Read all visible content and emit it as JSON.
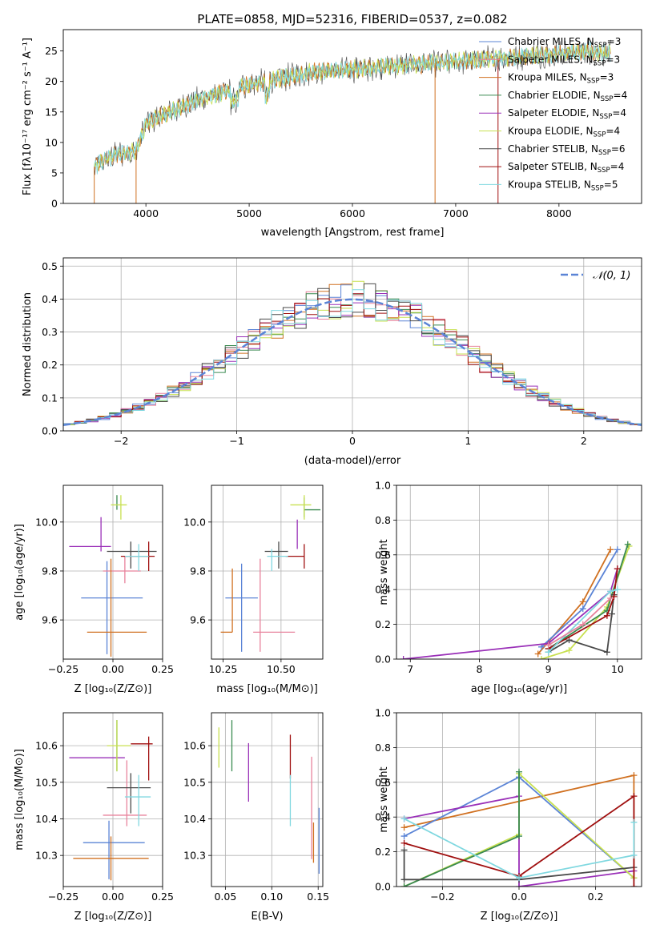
{
  "colors": {
    "chabrier_miles": "#5b84d6",
    "salpeter_miles": "#e8829c",
    "kroupa_miles": "#d07020",
    "chabrier_elodie": "#3a8a50",
    "salpeter_elodie": "#9a30b8",
    "kroupa_elodie": "#c8e050",
    "chabrier_stelib": "#4a4a4a",
    "salpeter_stelib": "#a01010",
    "kroupa_stelib": "#80d8e0",
    "gauss": "#5b84d6",
    "grid": "#b0b0b0"
  },
  "chart_data": [
    {
      "id": "spectrum",
      "type": "line",
      "title": "PLATE=0858, MJD=52316, FIBERID=0537, z=0.082",
      "xlabel": "wavelength [Angstrom, rest frame]",
      "ylabel": "Flux [fλ10⁻¹⁷ erg cm⁻² s⁻¹ A⁻¹]",
      "xlim": [
        3200,
        8800
      ],
      "ylim": [
        0,
        28.5
      ],
      "xticks": [
        4000,
        5000,
        6000,
        7000,
        8000
      ],
      "yticks": [
        0,
        5,
        10,
        15,
        20,
        25
      ],
      "grid": false,
      "legend_position": "right",
      "x_range_data": [
        3500,
        8500
      ],
      "continuum": {
        "x": [
          3500,
          3700,
          3900,
          4000,
          4100,
          4300,
          4500,
          4800,
          5000,
          5300,
          5600,
          6000,
          6400,
          6800,
          7200,
          7600,
          8000,
          8300,
          8500
        ],
        "y": [
          6,
          8,
          8.5,
          13,
          14,
          15.5,
          17,
          18.5,
          19.5,
          20.5,
          21.5,
          22,
          22.5,
          23,
          23.5,
          24,
          24.5,
          25,
          24.5
        ]
      },
      "legend": [
        {
          "label": "Chabrier MILES, N",
          "sub": "SSP",
          "tail": "=3",
          "color_key": "chabrier_miles"
        },
        {
          "label": "Salpeter MILES, N",
          "sub": "SSP",
          "tail": "=3",
          "color_key": "salpeter_miles"
        },
        {
          "label": "Kroupa MILES, N",
          "sub": "SSP",
          "tail": "=3",
          "color_key": "kroupa_miles"
        },
        {
          "label": "Chabrier ELODIE, N",
          "sub": "SSP",
          "tail": "=4",
          "color_key": "chabrier_elodie"
        },
        {
          "label": "Salpeter ELODIE, N",
          "sub": "SSP",
          "tail": "=4",
          "color_key": "salpeter_elodie"
        },
        {
          "label": "Kroupa ELODIE, N",
          "sub": "SSP",
          "tail": "=4",
          "color_key": "kroupa_elodie"
        },
        {
          "label": "Chabrier STELIB, N",
          "sub": "SSP",
          "tail": "=6",
          "color_key": "chabrier_stelib"
        },
        {
          "label": "Salpeter STELIB, N",
          "sub": "SSP",
          "tail": "=4",
          "color_key": "salpeter_stelib"
        },
        {
          "label": "Kroupa STELIB, N",
          "sub": "SSP",
          "tail": "=5",
          "color_key": "kroupa_stelib"
        }
      ],
      "drop_lines": [
        {
          "x": 3500,
          "color_key": "kroupa_miles"
        },
        {
          "x": 3905,
          "color_key": "kroupa_miles"
        },
        {
          "x": 6800,
          "color_key": "kroupa_miles"
        },
        {
          "x": 7410,
          "color_key": "salpeter_stelib"
        }
      ]
    },
    {
      "id": "residuals",
      "type": "step",
      "xlabel": "(data-model)/error",
      "ylabel": "Normed distribution",
      "xlim": [
        -2.5,
        2.5
      ],
      "ylim": [
        0,
        0.525
      ],
      "xticks": [
        -2,
        -1,
        0,
        1,
        2
      ],
      "yticks": [
        0.0,
        0.1,
        0.2,
        0.3,
        0.4,
        0.5
      ],
      "grid": true,
      "legend_position": "top-right",
      "gauss_label": "𝒩(0, 1)",
      "bin_width": 0.1
    },
    {
      "id": "age_vs_Z",
      "type": "errorbar",
      "xlabel": "Z [log₁₀(Z/Z⊙)]",
      "ylabel": "age  [log₁₀(age/yr)]",
      "xlim": [
        -0.25,
        0.25
      ],
      "ylim": [
        9.44,
        10.15
      ],
      "xticks": [
        -0.25,
        0.0,
        0.25
      ],
      "xticklabels": [
        "−0.25",
        "0.00",
        "0.25"
      ],
      "yticks": [
        9.6,
        9.8,
        10.0
      ],
      "points": [
        {
          "color_key": "chabrier_miles",
          "x": -0.03,
          "xerr": [
            0.13,
            0.18
          ],
          "y": 9.69,
          "yerr": [
            0.23,
            0.15
          ]
        },
        {
          "color_key": "salpeter_miles",
          "x": 0.06,
          "xerr": [
            0.11,
            0.08
          ],
          "y": 9.8,
          "yerr": [
            0.05,
            0.06
          ]
        },
        {
          "color_key": "kroupa_miles",
          "x": -0.01,
          "xerr": [
            0.12,
            0.18
          ],
          "y": 9.55,
          "yerr": [
            0.1,
            0.3
          ]
        },
        {
          "color_key": "chabrier_elodie",
          "x": 0.02,
          "xerr": [
            0.0,
            0.0
          ],
          "y": 10.07,
          "yerr": [
            0.02,
            0.04
          ]
        },
        {
          "color_key": "salpeter_elodie",
          "x": -0.06,
          "xerr": [
            0.16,
            0.05
          ],
          "y": 9.9,
          "yerr": [
            0.02,
            0.12
          ]
        },
        {
          "color_key": "kroupa_elodie",
          "x": 0.04,
          "xerr": [
            0.05,
            0.03
          ],
          "y": 10.07,
          "yerr": [
            0.06,
            0.04
          ]
        },
        {
          "color_key": "chabrier_stelib",
          "x": 0.09,
          "xerr": [
            0.12,
            0.13
          ],
          "y": 9.88,
          "yerr": [
            0.07,
            0.04
          ]
        },
        {
          "color_key": "salpeter_stelib",
          "x": 0.18,
          "xerr": [
            0.14,
            0.03
          ],
          "y": 9.86,
          "yerr": [
            0.06,
            0.06
          ]
        },
        {
          "color_key": "kroupa_stelib",
          "x": 0.13,
          "xerr": [
            0.07,
            0.05
          ],
          "y": 9.86,
          "yerr": [
            0.06,
            0.05
          ]
        }
      ]
    },
    {
      "id": "age_vs_mass",
      "type": "errorbar",
      "xlabel": "mass [log₁₀(M/M⊙)]",
      "ylabel": "",
      "xlim": [
        10.2,
        10.68
      ],
      "ylim": [
        9.44,
        10.15
      ],
      "xticks": [
        10.25,
        10.5
      ],
      "xticklabels": [
        "10.25",
        "10.50"
      ],
      "yticks": [
        9.6,
        9.8,
        10.0
      ],
      "points": [
        {
          "color_key": "chabrier_miles",
          "x": 10.33,
          "xerr": [
            0.07,
            0.07
          ],
          "y": 9.69,
          "yerr": [
            0.22,
            0.14
          ]
        },
        {
          "color_key": "salpeter_miles",
          "x": 10.41,
          "xerr": [
            0.03,
            0.15
          ],
          "y": 9.55,
          "yerr": [
            0.08,
            0.3
          ]
        },
        {
          "color_key": "kroupa_miles",
          "x": 10.29,
          "xerr": [
            0.05,
            0.0
          ],
          "y": 9.55,
          "yerr": [
            0.0,
            0.26
          ]
        },
        {
          "color_key": "chabrier_elodie",
          "x": 10.6,
          "xerr": [
            0.0,
            0.07
          ],
          "y": 10.05,
          "yerr": [
            0.03,
            0.05
          ]
        },
        {
          "color_key": "salpeter_elodie",
          "x": 10.57,
          "xerr": [
            0.0,
            0.0
          ],
          "y": 9.9,
          "yerr": [
            0.01,
            0.11
          ]
        },
        {
          "color_key": "kroupa_elodie",
          "x": 10.6,
          "xerr": [
            0.06,
            0.03
          ],
          "y": 10.07,
          "yerr": [
            0.06,
            0.04
          ]
        },
        {
          "color_key": "chabrier_stelib",
          "x": 10.49,
          "xerr": [
            0.06,
            0.04
          ],
          "y": 9.88,
          "yerr": [
            0.07,
            0.04
          ]
        },
        {
          "color_key": "salpeter_stelib",
          "x": 10.6,
          "xerr": [
            0.08,
            0.0
          ],
          "y": 9.86,
          "yerr": [
            0.05,
            0.05
          ]
        },
        {
          "color_key": "kroupa_stelib",
          "x": 10.46,
          "xerr": [
            0.02,
            0.07
          ],
          "y": 9.86,
          "yerr": [
            0.06,
            0.03
          ]
        }
      ]
    },
    {
      "id": "weights_vs_age",
      "type": "line",
      "xlabel": "age  [log₁₀(age/yr)]",
      "ylabel": "mass weight",
      "xlim": [
        6.8,
        10.35
      ],
      "ylim": [
        0,
        1.0
      ],
      "xticks": [
        7,
        8,
        9,
        10
      ],
      "yticks": [
        0.0,
        0.2,
        0.4,
        0.6,
        0.8,
        1.0
      ],
      "grid": true,
      "series": [
        {
          "color_key": "kroupa_miles",
          "x": [
            8.85,
            9.5,
            9.9
          ],
          "y": [
            0.03,
            0.33,
            0.63
          ]
        },
        {
          "color_key": "chabrier_miles",
          "x": [
            8.9,
            9.5,
            10.0
          ],
          "y": [
            0.07,
            0.29,
            0.63
          ]
        },
        {
          "color_key": "salpeter_elodie",
          "x": [
            6.9,
            9.0,
            9.9,
            10.0
          ],
          "y": [
            0.0,
            0.09,
            0.39,
            0.52
          ]
        },
        {
          "color_key": "kroupa_elodie",
          "x": [
            8.9,
            9.3,
            9.85,
            10.17
          ],
          "y": [
            0.0,
            0.05,
            0.3,
            0.65
          ]
        },
        {
          "color_key": "chabrier_elodie",
          "x": [
            9.0,
            9.85,
            10.15
          ],
          "y": [
            0.06,
            0.28,
            0.66
          ]
        },
        {
          "color_key": "chabrier_stelib",
          "x": [
            9.0,
            9.3,
            9.85,
            9.92,
            9.95
          ],
          "y": [
            0.04,
            0.11,
            0.04,
            0.26,
            0.37
          ]
        },
        {
          "color_key": "salpeter_stelib",
          "x": [
            9.0,
            9.85,
            9.95,
            10.0
          ],
          "y": [
            0.06,
            0.25,
            0.36,
            0.52
          ]
        },
        {
          "color_key": "kroupa_stelib",
          "x": [
            9.0,
            9.9,
            10.0
          ],
          "y": [
            0.04,
            0.39,
            0.4
          ]
        },
        {
          "color_key": "salpeter_miles",
          "x": [
            9.0,
            9.5,
            9.9
          ],
          "y": [
            0.08,
            0.2,
            0.35
          ]
        }
      ]
    },
    {
      "id": "mass_vs_Z",
      "type": "errorbar",
      "xlabel": "Z [log₁₀(Z/Z⊙)]",
      "ylabel": "mass [log₁₀(M/M⊙)]",
      "xlim": [
        -0.25,
        0.25
      ],
      "ylim": [
        10.215,
        10.69
      ],
      "xticks": [
        -0.25,
        0.0,
        0.25
      ],
      "xticklabels": [
        "−0.25",
        "0.00",
        "0.25"
      ],
      "yticks": [
        10.3,
        10.4,
        10.5,
        10.6
      ],
      "points": [
        {
          "color_key": "chabrier_miles",
          "x": -0.02,
          "xerr": [
            0.13,
            0.18
          ],
          "y": 10.335,
          "yerr": [
            0.1,
            0.06
          ]
        },
        {
          "color_key": "salpeter_miles",
          "x": 0.07,
          "xerr": [
            0.12,
            0.1
          ],
          "y": 10.41,
          "yerr": [
            0.03,
            0.15
          ]
        },
        {
          "color_key": "kroupa_miles",
          "x": -0.01,
          "xerr": [
            0.19,
            0.19
          ],
          "y": 10.292,
          "yerr": [
            0.06,
            0.06
          ]
        },
        {
          "color_key": "chabrier_elodie",
          "x": 0.02,
          "xerr": [
            0.0,
            0.0
          ],
          "y": 10.6,
          "yerr": [
            0.07,
            0.07
          ]
        },
        {
          "color_key": "salpeter_elodie",
          "x": -0.09,
          "xerr": [
            0.13,
            0.15
          ],
          "y": 10.567,
          "yerr": [
            0.0,
            0.0
          ]
        },
        {
          "color_key": "kroupa_elodie",
          "x": 0.02,
          "xerr": [
            0.05,
            0.07
          ],
          "y": 10.6,
          "yerr": [
            0.07,
            0.07
          ]
        },
        {
          "color_key": "chabrier_stelib",
          "x": 0.09,
          "xerr": [
            0.12,
            0.1
          ],
          "y": 10.485,
          "yerr": [
            0.07,
            0.04
          ]
        },
        {
          "color_key": "salpeter_stelib",
          "x": 0.18,
          "xerr": [
            0.09,
            0.02
          ],
          "y": 10.605,
          "yerr": [
            0.1,
            0.02
          ]
        },
        {
          "color_key": "kroupa_stelib",
          "x": 0.13,
          "xerr": [
            0.07,
            0.06
          ],
          "y": 10.46,
          "yerr": [
            0.08,
            0.06
          ]
        }
      ]
    },
    {
      "id": "mass_vs_EBV",
      "type": "errorbar",
      "xlabel": "E(B-V)",
      "ylabel": "",
      "xlim": [
        0.035,
        0.155
      ],
      "ylim": [
        10.215,
        10.69
      ],
      "xticks": [
        0.05,
        0.1,
        0.15
      ],
      "xticklabels": [
        "0.05",
        "0.10",
        "0.15"
      ],
      "yticks": [
        10.3,
        10.4,
        10.5,
        10.6
      ],
      "points": [
        {
          "color_key": "kroupa_elodie",
          "x": 0.043,
          "xerr": [
            0,
            0
          ],
          "y": 10.6,
          "yerr": [
            0.06,
            0.05
          ]
        },
        {
          "color_key": "chabrier_elodie",
          "x": 0.057,
          "xerr": [
            0,
            0
          ],
          "y": 10.6,
          "yerr": [
            0.07,
            0.07
          ]
        },
        {
          "color_key": "salpeter_elodie",
          "x": 0.075,
          "xerr": [
            0,
            0
          ],
          "y": 10.527,
          "yerr": [
            0.08,
            0.08
          ]
        },
        {
          "color_key": "salpeter_stelib",
          "x": 0.12,
          "xerr": [
            0,
            0
          ],
          "y": 10.57,
          "yerr": [
            0.06,
            0.06
          ]
        },
        {
          "color_key": "kroupa_stelib",
          "x": 0.12,
          "xerr": [
            0,
            0
          ],
          "y": 10.45,
          "yerr": [
            0.07,
            0.07
          ]
        },
        {
          "color_key": "salpeter_miles",
          "x": 0.143,
          "xerr": [
            0,
            0
          ],
          "y": 10.42,
          "yerr": [
            0.13,
            0.15
          ]
        },
        {
          "color_key": "kroupa_miles",
          "x": 0.145,
          "xerr": [
            0,
            0
          ],
          "y": 10.33,
          "yerr": [
            0.05,
            0.06
          ]
        },
        {
          "color_key": "chabrier_miles",
          "x": 0.151,
          "xerr": [
            0,
            0
          ],
          "y": 10.33,
          "yerr": [
            0.08,
            0.1
          ]
        }
      ]
    },
    {
      "id": "weights_vs_Z",
      "type": "line",
      "xlabel": "Z [log₁₀(Z/Z⊙)]",
      "ylabel": "mass weight",
      "xlim": [
        -0.32,
        0.32
      ],
      "ylim": [
        0,
        1.0
      ],
      "xticks": [
        -0.2,
        0.0,
        0.2
      ],
      "xticklabels": [
        "−0.2",
        "0.0",
        "0.2"
      ],
      "yticks": [
        0.0,
        0.2,
        0.4,
        0.6,
        0.8,
        1.0
      ],
      "grid": true,
      "series": [
        {
          "color_key": "kroupa_miles",
          "x": [
            -0.3,
            0.3,
            0.3
          ],
          "y": [
            0.34,
            0.64,
            0.05
          ]
        },
        {
          "color_key": "chabrier_miles",
          "x": [
            -0.3,
            0.0,
            0.3
          ],
          "y": [
            0.29,
            0.63,
            0.05
          ]
        },
        {
          "color_key": "salpeter_elodie",
          "x": [
            -0.3,
            0.0,
            0.0,
            0.3
          ],
          "y": [
            0.39,
            0.52,
            0.0,
            0.09
          ]
        },
        {
          "color_key": "kroupa_elodie",
          "x": [
            -0.3,
            0.0,
            0.0,
            0.3
          ],
          "y": [
            0.0,
            0.3,
            0.65,
            0.05
          ]
        },
        {
          "color_key": "chabrier_elodie",
          "x": [
            -0.3,
            0.0,
            0.0
          ],
          "y": [
            0.0,
            0.29,
            0.66
          ]
        },
        {
          "color_key": "chabrier_stelib",
          "x": [
            -0.3,
            -0.3,
            0.0,
            0.3
          ],
          "y": [
            0.21,
            0.04,
            0.04,
            0.11
          ]
        },
        {
          "color_key": "salpeter_stelib",
          "x": [
            -0.3,
            0.0,
            0.3,
            0.3
          ],
          "y": [
            0.25,
            0.06,
            0.52,
            0.0
          ]
        },
        {
          "color_key": "kroupa_stelib",
          "x": [
            -0.3,
            0.0,
            0.3,
            0.3
          ],
          "y": [
            0.39,
            0.05,
            0.18,
            0.37
          ]
        }
      ]
    }
  ]
}
